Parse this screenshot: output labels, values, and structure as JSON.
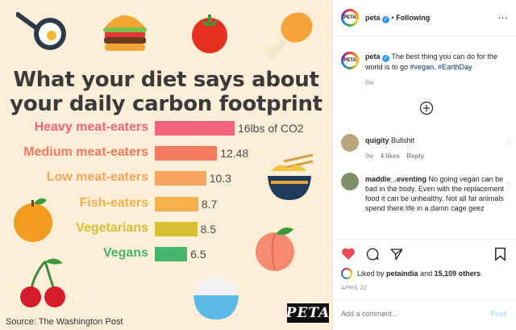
{
  "post": {
    "headline_line1": "What your diet says about",
    "headline_line2": "your daily carbon footprint",
    "source": "Source: The Washington Post",
    "logo_text": "PETA"
  },
  "chart_data": {
    "type": "bar",
    "orientation": "horizontal",
    "title": "What your diet says about your daily carbon footprint",
    "categories": [
      "Heavy meat-eaters",
      "Medium meat-eaters",
      "Low meat-eaters",
      "Fish-eaters",
      "Vegetarians",
      "Vegans"
    ],
    "values": [
      16,
      12.48,
      10.3,
      8.7,
      8.5,
      6.5
    ],
    "value_labels": [
      "16lbs of CO2",
      "12.48",
      "10.3",
      "8.7",
      "8.5",
      "6.5"
    ],
    "unit": "lbs of CO2",
    "colors": [
      "#f1647a",
      "#f27a5e",
      "#f6a55f",
      "#f4b04a",
      "#d9bf33",
      "#46b46a"
    ],
    "xlim": [
      0,
      16
    ],
    "grid": false,
    "legend": "none"
  },
  "header": {
    "username": "peta",
    "separator": "•",
    "follow_status": "Following",
    "more": "…"
  },
  "caption": {
    "username": "peta",
    "text": "The best thing you can do for the world is to go",
    "hashtag1": "#vegan.",
    "hashtag2": "#EarthDay",
    "age": "9w"
  },
  "comments": [
    {
      "username": "quigity",
      "text": "Bullshit",
      "age": "9w",
      "likes": "4 likes",
      "reply": "Reply"
    },
    {
      "username": "maddie_.eventing",
      "text": "No going vegan can be bad in the body. Even with the replacement food it can be unhealthy. Not all far animals spend there life in a damn cage geez"
    }
  ],
  "actions": {
    "liked_by_prefix": "Liked by",
    "liked_by_user": "petaindia",
    "liked_by_and": "and",
    "liked_by_count": "15,109 others",
    "date": "APRIL 22"
  },
  "comment_box": {
    "placeholder": "Add a comment...",
    "post_label": "Post"
  },
  "colors": {
    "accent_blue": "#3897f0",
    "heart_red": "#ed4956",
    "background_cream": "#fdeed8"
  }
}
